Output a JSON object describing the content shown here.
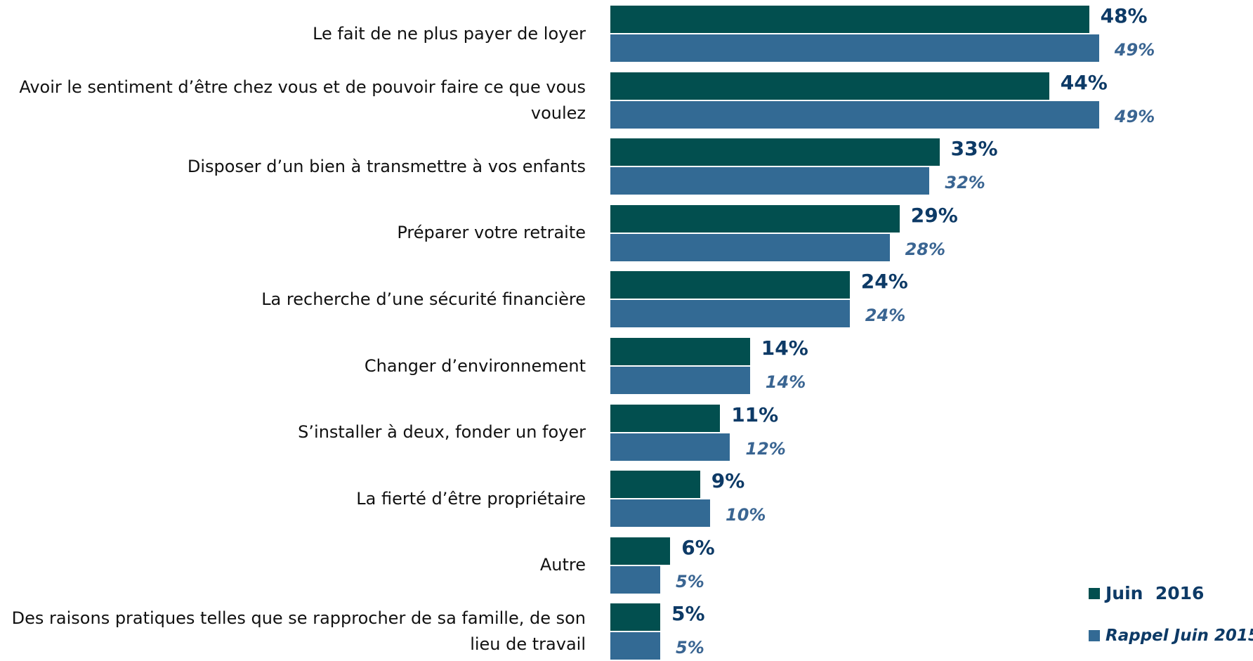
{
  "chart_data": {
    "type": "bar",
    "orientation": "horizontal",
    "categories": [
      "Le fait de ne plus payer de loyer",
      "Avoir le sentiment d’être chez vous et de pouvoir faire ce que vous voulez",
      "Disposer d’un bien à transmettre à vos enfants",
      "Préparer votre retraite",
      "La recherche d’une sécurité financière",
      "Changer d’environnement",
      "S’installer à deux, fonder un foyer",
      "La fierté d’être propriétaire",
      "Autre",
      "Des raisons pratiques telles que se rapprocher de sa famille, de son lieu de travail"
    ],
    "series": [
      {
        "name": "Juin  2016",
        "color": "#024f4f",
        "values": [
          48,
          44,
          33,
          29,
          24,
          14,
          11,
          9,
          6,
          5
        ],
        "value_labels": [
          "48%",
          "44%",
          "33%",
          "29%",
          "24%",
          "14%",
          "11%",
          "9%",
          "6%",
          "5%"
        ]
      },
      {
        "name": "Rappel Juin 2015",
        "color": "#336a94",
        "values": [
          49,
          49,
          32,
          28,
          24,
          14,
          12,
          10,
          5,
          5
        ],
        "value_labels": [
          "49%",
          "49%",
          "32%",
          "28%",
          "24%",
          "14%",
          "12%",
          "10%",
          "5%",
          "5%"
        ]
      }
    ],
    "legend": "bottom-right"
  }
}
